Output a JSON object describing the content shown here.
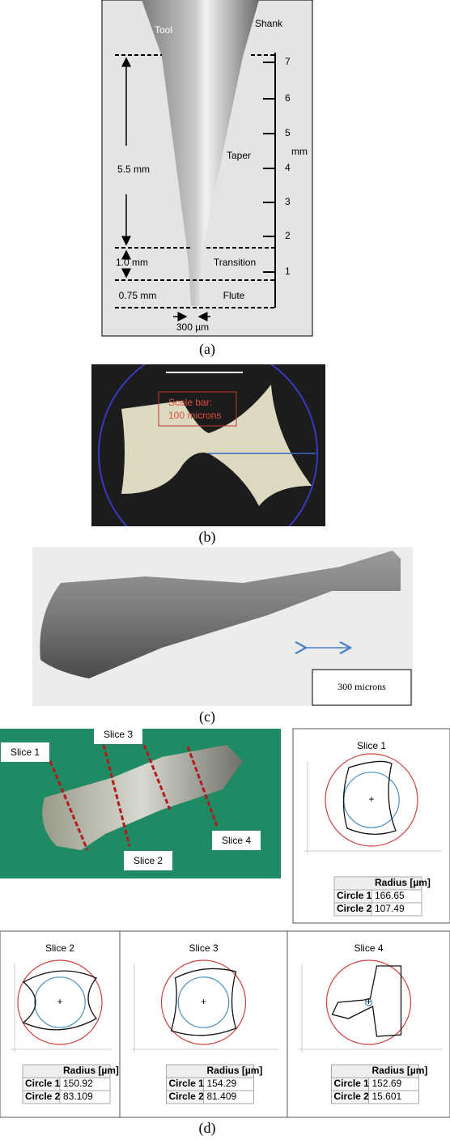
{
  "panel_a": {
    "labels": {
      "tool": "Tool",
      "shank": "Shank",
      "taper_len": "5.5 mm",
      "taper": "Taper",
      "unit": "mm",
      "transition_len": "1.0 mm",
      "transition": "Transition",
      "flute_len": "0.75 mm",
      "flute": "Flute",
      "width": "300 µm"
    },
    "scale": [
      "1",
      "2",
      "3",
      "4",
      "5",
      "6",
      "7"
    ],
    "caption": "(a)"
  },
  "panel_b": {
    "scale_bar": [
      "Scale bar:",
      "100 microns"
    ],
    "caption": "(b)"
  },
  "panel_c": {
    "scale_bar": "300 microns",
    "caption": "(c)"
  },
  "panel_d": {
    "labels": [
      "Slice 1",
      "Slice 2",
      "Slice 3",
      "Slice 4"
    ],
    "caption": "(d)"
  },
  "slices": [
    {
      "title": "Slice 1",
      "header": "Radius [µm]",
      "rows": [
        [
          "Circle 1",
          "166.65"
        ],
        [
          "Circle 2",
          "107.49"
        ]
      ]
    },
    {
      "title": "Slice 2",
      "header": "Radius [µm]",
      "rows": [
        [
          "Circle 1",
          "150.92"
        ],
        [
          "Circle 2",
          "83.109"
        ]
      ]
    },
    {
      "title": "Slice 3",
      "header": "Radius [µm]",
      "rows": [
        [
          "Circle 1",
          "154.29"
        ],
        [
          "Circle 2",
          "81.409"
        ]
      ]
    },
    {
      "title": "Slice 4",
      "header": "Radius [µm]",
      "rows": [
        [
          "Circle 1",
          "152.69"
        ],
        [
          "Circle 2",
          "15.601"
        ]
      ]
    }
  ]
}
